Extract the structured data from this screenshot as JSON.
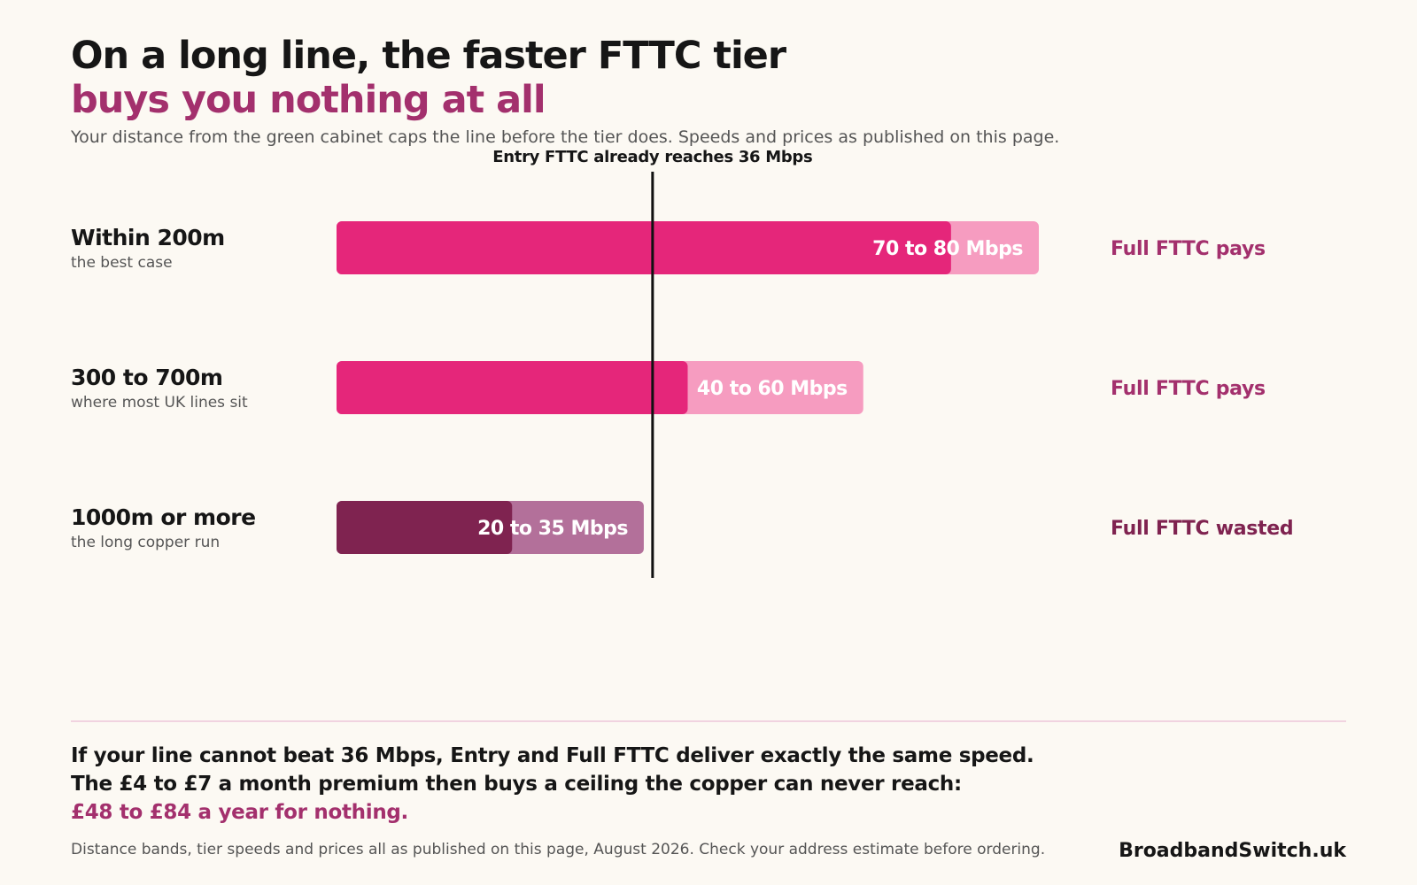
{
  "title_line1": "On a long line, the faster FTTC tier",
  "title_line2": "buys you nothing at all",
  "subtitle": "Your distance from the green cabinet caps the line before the tier does.  Speeds and prices as published on this page.",
  "chart_data": {
    "type": "bar",
    "orientation": "horizontal",
    "reference_line": {
      "value": 36,
      "label": "Entry FTTC already reaches 36 Mbps"
    },
    "xlim": [
      0,
      80
    ],
    "grid": false,
    "rows": [
      {
        "label": "Within 200m",
        "sublabel": "the best case",
        "low": 70,
        "high": 80,
        "value_label": "70 to 80 Mbps",
        "verdict": "Full FTTC pays",
        "wasted": false
      },
      {
        "label": "300 to 700m",
        "sublabel": "where most UK lines sit",
        "low": 40,
        "high": 60,
        "value_label": "40 to 60 Mbps",
        "verdict": "Full FTTC pays",
        "wasted": false
      },
      {
        "label": "1000m or more",
        "sublabel": "the long copper run",
        "low": 20,
        "high": 35,
        "value_label": "20 to 35 Mbps",
        "verdict": "Full FTTC wasted",
        "wasted": true
      }
    ],
    "colors": {
      "pays_dark": "#e5267a",
      "pays_light": "#f69cc0",
      "wasted_dark": "#7f2350",
      "wasted_light": "#b3709a",
      "verdict_pays": "#a3306d",
      "verdict_wasted": "#7f2350",
      "reference_line": "#111111"
    }
  },
  "takeaway": {
    "line1": "If your line cannot beat 36 Mbps, Entry and Full FTTC deliver exactly the same speed.",
    "line2": "The £4 to £7 a month premium then buys a ceiling the copper can never reach:",
    "line3": "£48 to £84 a year for nothing."
  },
  "footnote": "Distance bands, tier speeds and prices all as published on this page, August 2026.  Check your address estimate before ordering.",
  "brand": "BroadbandSwitch.uk"
}
